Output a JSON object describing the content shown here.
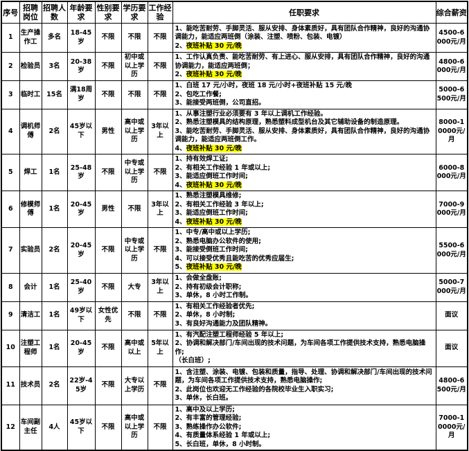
{
  "table": {
    "columns": [
      {
        "key": "no",
        "label": "序号"
      },
      {
        "key": "position",
        "label": "招聘岗位"
      },
      {
        "key": "count",
        "label": "招聘人数"
      },
      {
        "key": "age",
        "label": "年龄要求"
      },
      {
        "key": "gender",
        "label": "性别要求"
      },
      {
        "key": "education",
        "label": "学历要求"
      },
      {
        "key": "experience",
        "label": "工作经验"
      },
      {
        "key": "requirements",
        "label": "任职要求"
      },
      {
        "key": "salary",
        "label": "综合薪资"
      }
    ],
    "highlight_color": "#ffff00",
    "rows": [
      {
        "no": "1",
        "position": "生产操作工",
        "count": "多名",
        "age": "18-45岁",
        "gender": "不限",
        "education": "不限",
        "experience": "不限",
        "requirements": [
          [
            {
              "t": "1、能吃苦耐劳、手脚灵活、服从安排、身体素质好，具有团队合作精神，良好的沟通协调能力，能适应两班倒（涂装、注塑、喷粉、包装、电镀）"
            }
          ],
          [
            {
              "t": "2、"
            },
            {
              "t": "夜班补贴 30 元/晚",
              "hl": true
            }
          ]
        ],
        "salary": "4500-6000元/月"
      },
      {
        "no": "2",
        "position": "检验员",
        "count": "3名",
        "age": "20-38岁",
        "gender": "不限",
        "education": "初中或以上学历",
        "experience": "不限",
        "requirements": [
          [
            {
              "t": "1、工作认真负责、能吃苦耐劳、有上进心、服从安排，具有团队合作精神，良好的沟通协调能力，能适应两班倒；"
            }
          ],
          [
            {
              "t": "2、"
            },
            {
              "t": "夜班补贴 30 元/晚",
              "hl": true
            }
          ]
        ],
        "salary": "4800-6000元/月"
      },
      {
        "no": "3",
        "position": "临时工",
        "count": "15名",
        "age": "满18周岁",
        "gender": "不限",
        "education": "不限",
        "experience": "不限",
        "requirements": [
          [
            {
              "t": "1、白班 17 元/小时，夜班 18 元/小时+夜班补贴 15 元/晚"
            }
          ],
          [
            {
              "t": "2、包吃工作餐;"
            }
          ],
          [
            {
              "t": "3、能接受两班倒，公司直招。"
            }
          ]
        ],
        "salary": "5000-6500元/月"
      },
      {
        "no": "4",
        "position": "调机师傅",
        "count": "2名",
        "age": "45岁以下",
        "gender": "男性",
        "education": "高中或以上学历",
        "experience": "3年以上",
        "requirements": [
          [
            {
              "t": "1、从事注塑行业必须要有 3 年以上调机工作经验。"
            }
          ],
          [
            {
              "t": "2、熟悉注塑模具的结构原理，熟悉塑料成型机台及其它辅助设备的制造原理。"
            }
          ],
          [
            {
              "t": "3、能吃苦耐劳、手脚灵活、服从安排、身体素质好，具有团队合作精神，良好的沟通协调能力，能适应两班倒工作。"
            }
          ],
          [
            {
              "t": "4、"
            },
            {
              "t": "夜班补贴 30 元/晚",
              "hl": true
            }
          ]
        ],
        "salary": "8000-10000元/月"
      },
      {
        "no": "5",
        "position": "焊工",
        "count": "1名",
        "age": "25-48岁",
        "gender": "不限",
        "education": "中专或以上学历",
        "experience": "不限",
        "requirements": [
          [
            {
              "t": "1、持有效焊工证;"
            }
          ],
          [
            {
              "t": "2、有相关工作经验 1 年或以上;"
            }
          ],
          [
            {
              "t": "3、能适应倒班工作时间;"
            }
          ],
          [
            {
              "t": "4、"
            },
            {
              "t": "夜班补贴 30 元/晚",
              "hl": true
            }
          ]
        ],
        "salary": "6000-8000元/月"
      },
      {
        "no": "6",
        "position": "修模师傅",
        "count": "1名",
        "age": "20-45岁",
        "gender": "男性",
        "education": "不限",
        "experience": "3年以上",
        "requirements": [
          [
            {
              "t": "1、熟悉注塑模具维修;"
            }
          ],
          [
            {
              "t": "2、有相关工作经验 3 年以上;"
            }
          ],
          [
            {
              "t": "3、能适应倒班工作时间;"
            }
          ],
          [
            {
              "t": "4、"
            },
            {
              "t": "夜班补贴 30 元/晚",
              "hl": true
            }
          ]
        ],
        "salary": "7000-9000元/月"
      },
      {
        "no": "7",
        "position": "实验员",
        "count": "2名",
        "age": "20-45岁",
        "gender": "不限",
        "education": "中专或以上学历",
        "experience": "不限",
        "requirements": [
          [
            {
              "t": "1、中专/高中或以上学历;"
            }
          ],
          [
            {
              "t": "2、熟悉电脑办公软件的使用;"
            }
          ],
          [
            {
              "t": "3、能接受倒班工作时间;"
            }
          ],
          [
            {
              "t": "4、可以接受优秀且能吃苦的优秀应届生;"
            }
          ],
          [
            {
              "t": "5、"
            },
            {
              "t": "夜班补贴 30 元/晚",
              "hl": true
            }
          ]
        ],
        "salary": "5500-6000元/月"
      },
      {
        "no": "8",
        "position": "会计",
        "count": "1名",
        "age": "25-40岁",
        "gender": "不限",
        "education": "大专",
        "experience": "3年以上",
        "requirements": [
          [
            {
              "t": "1、会做全盘账;"
            }
          ],
          [
            {
              "t": "2、持有初级会计职称;"
            }
          ],
          [
            {
              "t": "3、单休，8 小时工作制。"
            }
          ]
        ],
        "salary": "5000-7000元/月"
      },
      {
        "no": "9",
        "position": "清洁工",
        "count": "1名",
        "age": "49岁以下",
        "gender": "女性优先",
        "education": "不限",
        "experience": "不限",
        "requirements": [
          [
            {
              "t": "1、有相关工作经验者优先;"
            }
          ],
          [
            {
              "t": "2、单休，8 小时制;"
            }
          ],
          [
            {
              "t": "3、有良好沟通能力及团队精神。"
            }
          ]
        ],
        "salary": "面议"
      },
      {
        "no": "10",
        "position": "注塑工程师",
        "count": "1名",
        "age": "20-45岁",
        "gender": "不限",
        "education": "高中或以上",
        "experience": "5年以上",
        "requirements": [
          [
            {
              "t": "1、有汽配注塑工程师经验 5 年以上;"
            }
          ],
          [
            {
              "t": "2、协调和解决部门/车间出现的技术问题，为车间各项工作提供技术支持，熟悉电脑操作;"
            }
          ],
          [
            {
              "t": "（长白班）;"
            }
          ]
        ],
        "salary": "面议"
      },
      {
        "no": "11",
        "position": "技术员",
        "count": "2名",
        "age": "22岁-45岁",
        "gender": "不限",
        "education": "大专以上学历",
        "experience": "不限",
        "requirements": [
          [
            {
              "t": "1、含注塑、涂装、电镀、包装和质量，指导、处理、协调和解决部门/车间出现的技术问题，为车间各项工作提供技术支持，熟悉电脑操作;"
            }
          ],
          [
            {
              "t": "2、此岗位也欢迎无工作经验的各院校毕业生入职实习;"
            }
          ],
          [
            {
              "t": "3、单休，长白班。"
            }
          ]
        ],
        "salary": "4800-6500元/月"
      },
      {
        "no": "12",
        "position": "车间副主任",
        "count": "4人",
        "age": "45岁以下",
        "gender": "不限",
        "education": "高中或以上学历",
        "experience": "不限",
        "requirements": [
          [
            {
              "t": "1、高中及以上学历;"
            }
          ],
          [
            {
              "t": "2、有丰富的管理经验;"
            }
          ],
          [
            {
              "t": "3、熟练操作办公软件;"
            }
          ],
          [
            {
              "t": "4、有质量体系经验 1 年或以上;"
            }
          ],
          [
            {
              "t": "5、长白班，单休，8 小时制。"
            }
          ]
        ],
        "salary": "7000-10000元/月"
      }
    ]
  }
}
